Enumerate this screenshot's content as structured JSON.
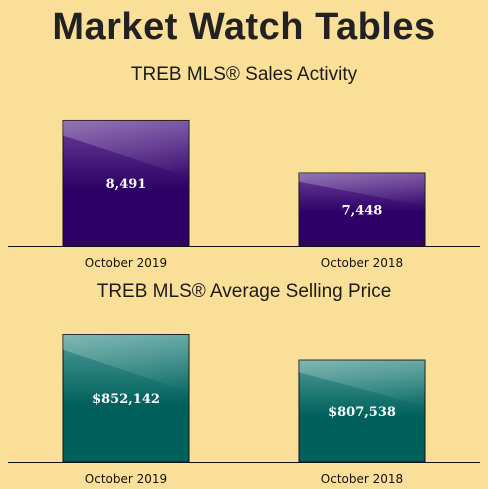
{
  "page": {
    "title": "Market Watch Tables"
  },
  "chart_data": [
    {
      "id": "sales",
      "type": "bar",
      "title": "TREB MLS® Sales Activity",
      "categories": [
        "October 2019",
        "October 2018"
      ],
      "values": [
        8491,
        7448
      ],
      "value_labels": [
        "8,491",
        "7,448"
      ],
      "ylim": [
        6000,
        8500
      ],
      "grid": false,
      "legend": "none",
      "bar_color_top": "#6a3f98",
      "bar_color_bottom": "#2d0066"
    },
    {
      "id": "price",
      "type": "bar",
      "title": "TREB MLS® Average Selling Price",
      "categories": [
        "October 2019",
        "October 2018"
      ],
      "values": [
        852142,
        807538
      ],
      "value_labels": [
        "$852,142",
        "$807,538"
      ],
      "ylim": [
        630000,
        853000
      ],
      "grid": false,
      "legend": "none",
      "bar_color_top": "#4f9c98",
      "bar_color_bottom": "#00615c"
    }
  ]
}
